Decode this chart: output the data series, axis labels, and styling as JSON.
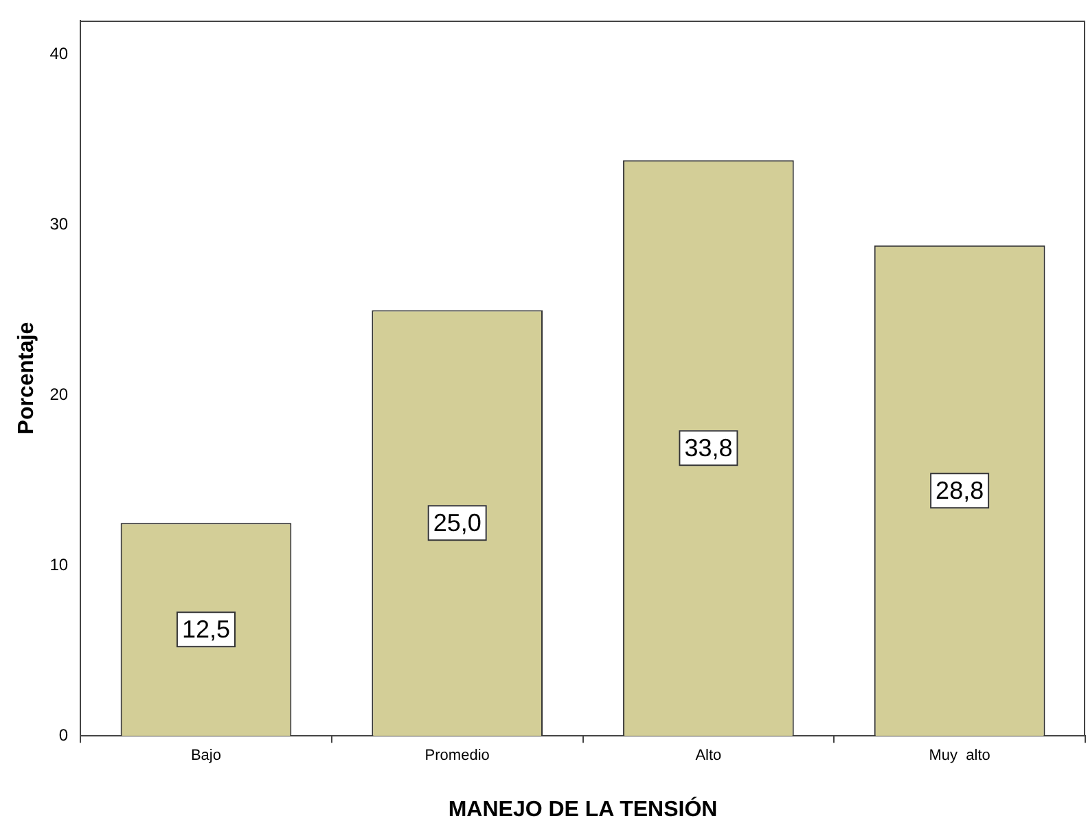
{
  "chart_data": {
    "type": "bar",
    "xlabel": "MANEJO DE LA TENSIÓN",
    "ylabel": "Porcentaje",
    "categories": [
      "Bajo",
      "Promedio",
      "Alto",
      "Muy  alto"
    ],
    "values": [
      12.5,
      25.0,
      33.8,
      28.8
    ],
    "value_labels": [
      "12,5",
      "25,0",
      "33,8",
      "28,8"
    ],
    "color": "#d3ce97",
    "ylim": [
      0,
      42
    ],
    "yticks": [
      0,
      10,
      20,
      30,
      40
    ],
    "grid": false,
    "legend": false
  }
}
